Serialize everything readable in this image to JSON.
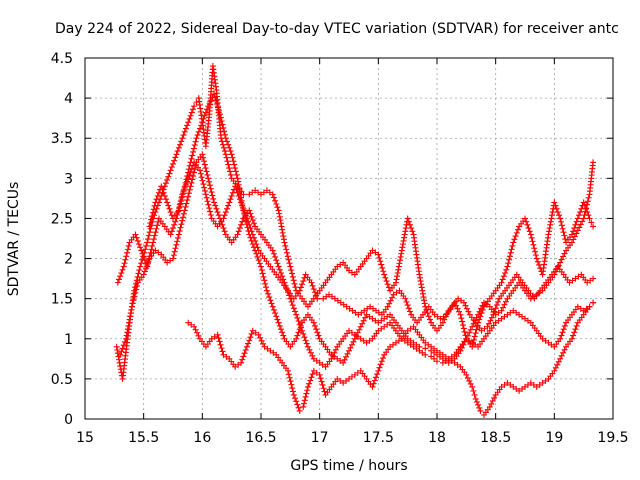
{
  "chart_data": {
    "type": "scatter",
    "title": "Day 224 of 2022, Sidereal Day-to-day VTEC variation (SDTVAR) for receiver antc",
    "xlabel": "GPS time / hours",
    "ylabel": "SDTVAR / TECUs",
    "xlim": [
      15,
      19.5
    ],
    "ylim": [
      0,
      4.5
    ],
    "x_ticks": [
      "15",
      "15.5",
      "16",
      "16.5",
      "17",
      "17.5",
      "18",
      "18.5",
      "19",
      "19.5"
    ],
    "y_ticks": [
      "0",
      "0.5",
      "1",
      "1.5",
      "2",
      "2.5",
      "3",
      "3.5",
      "4",
      "4.5"
    ],
    "grid": true,
    "marker": "+",
    "color": "#ff0000",
    "series": [
      {
        "name": "series-1",
        "x": [
          15.27,
          15.32,
          15.38,
          15.42,
          15.47,
          15.53,
          15.58,
          15.63,
          15.68,
          15.73,
          15.78,
          15.83,
          15.88,
          15.93,
          15.97,
          16.0,
          16.03,
          16.06,
          16.09,
          16.12,
          16.16,
          16.2,
          16.25,
          16.3,
          16.35,
          16.4,
          16.45,
          16.5,
          16.55,
          16.6,
          16.65,
          16.7,
          16.75,
          16.8,
          16.85,
          16.9,
          16.95,
          17.0,
          17.05,
          17.1,
          17.15,
          17.2,
          17.25,
          17.3,
          17.35,
          17.4,
          17.45,
          17.5,
          17.55,
          17.6,
          17.65,
          17.7,
          17.75,
          17.8,
          17.85,
          17.9,
          17.95,
          18.0,
          18.05,
          18.1,
          18.15,
          18.2,
          18.25,
          18.3,
          18.35,
          18.4,
          18.45,
          18.5,
          18.55,
          18.6,
          18.65,
          18.7,
          18.75,
          18.8,
          18.85,
          18.9,
          18.95,
          19.0,
          19.05,
          19.1,
          19.15,
          19.2,
          19.25,
          19.3,
          19.33
        ],
        "y": [
          0.9,
          0.5,
          1.2,
          1.6,
          1.9,
          2.2,
          2.5,
          2.7,
          2.9,
          3.1,
          3.3,
          3.5,
          3.7,
          3.9,
          4.0,
          3.7,
          3.4,
          3.8,
          4.4,
          4.1,
          3.5,
          3.3,
          3.0,
          2.9,
          2.8,
          2.8,
          2.85,
          2.8,
          2.85,
          2.8,
          2.6,
          2.2,
          1.9,
          1.6,
          1.5,
          1.4,
          1.5,
          1.6,
          1.7,
          1.8,
          1.9,
          1.95,
          1.85,
          1.8,
          1.9,
          2.0,
          2.1,
          2.05,
          1.8,
          1.6,
          1.7,
          2.1,
          2.5,
          2.3,
          1.8,
          1.4,
          1.2,
          1.1,
          1.2,
          1.35,
          1.45,
          1.3,
          1.0,
          0.9,
          1.2,
          1.4,
          1.5,
          1.6,
          1.7,
          1.9,
          2.2,
          2.4,
          2.5,
          2.3,
          2.0,
          1.8,
          2.3,
          2.7,
          2.5,
          2.2,
          2.3,
          2.5,
          2.7,
          2.5,
          2.4
        ]
      },
      {
        "name": "series-2",
        "x": [
          15.28,
          15.33,
          15.38,
          15.43,
          15.48,
          15.53,
          15.58,
          15.63,
          15.68,
          15.73,
          15.78,
          15.83,
          15.88,
          15.93,
          15.98,
          16.03,
          16.08,
          16.13,
          16.18,
          16.23,
          16.28,
          16.33,
          16.38,
          16.43,
          16.48,
          16.53,
          16.58,
          16.63,
          16.68,
          16.73,
          16.78,
          16.83,
          16.88,
          16.93,
          16.98,
          17.03,
          17.08,
          17.13,
          17.18,
          17.23,
          17.28,
          17.33,
          17.38,
          17.43,
          17.48,
          17.53,
          17.58,
          17.63,
          17.68,
          17.73,
          17.78,
          17.83,
          17.88,
          17.93,
          17.98,
          18.03,
          18.08,
          18.13,
          18.18,
          18.23,
          18.28,
          18.33,
          18.38,
          18.43,
          18.48,
          18.53,
          18.58,
          18.63,
          18.68,
          18.73,
          18.78,
          18.83,
          18.88,
          18.93,
          18.98,
          19.03,
          19.08,
          19.13,
          19.18,
          19.23,
          19.28,
          19.33
        ],
        "y": [
          1.7,
          1.9,
          2.2,
          2.3,
          2.1,
          1.9,
          2.2,
          2.5,
          2.4,
          2.3,
          2.5,
          2.8,
          3.0,
          3.2,
          3.1,
          2.8,
          2.5,
          2.4,
          2.5,
          2.7,
          2.9,
          2.7,
          2.5,
          2.3,
          2.1,
          2.0,
          1.9,
          1.8,
          1.7,
          1.6,
          1.5,
          1.6,
          1.8,
          1.7,
          1.5,
          1.5,
          1.55,
          1.5,
          1.45,
          1.4,
          1.35,
          1.3,
          1.35,
          1.4,
          1.35,
          1.3,
          1.4,
          1.55,
          1.6,
          1.5,
          1.3,
          1.2,
          1.3,
          1.4,
          1.3,
          1.25,
          1.3,
          1.4,
          1.5,
          1.45,
          1.3,
          1.2,
          1.1,
          1.15,
          1.3,
          1.5,
          1.6,
          1.7,
          1.8,
          1.7,
          1.6,
          1.5,
          1.6,
          1.7,
          1.8,
          1.9,
          1.8,
          1.7,
          1.75,
          1.8,
          1.7,
          1.75
        ]
      },
      {
        "name": "series-3",
        "x": [
          15.3,
          15.35,
          15.4,
          15.45,
          15.5,
          15.55,
          15.6,
          15.65,
          15.7,
          15.75,
          15.8,
          15.85,
          15.9,
          15.95,
          16.0,
          16.05,
          16.1,
          16.15,
          16.2,
          16.25,
          16.3,
          16.35,
          16.4,
          16.45,
          16.5,
          16.55,
          16.6,
          16.65,
          16.7,
          16.75,
          16.8,
          16.85,
          16.9,
          16.95,
          17.0,
          17.05,
          17.1,
          17.15,
          17.2,
          17.25,
          17.3,
          17.35,
          17.4,
          17.45,
          17.5,
          17.55,
          17.6,
          17.65,
          17.7,
          17.75,
          17.8,
          17.85,
          17.9,
          17.95,
          18.0,
          18.05,
          18.1,
          18.15,
          18.2,
          18.25,
          18.3,
          18.35,
          18.4,
          18.45,
          18.5,
          18.55,
          18.6,
          18.65,
          18.7,
          18.75,
          18.8,
          18.85,
          18.9,
          18.95,
          19.0,
          19.05,
          19.1,
          19.15,
          19.2,
          19.25,
          19.3,
          19.33
        ],
        "y": [
          0.8,
          1.0,
          1.4,
          1.7,
          1.8,
          2.0,
          2.1,
          2.05,
          1.95,
          2.0,
          2.3,
          2.6,
          2.9,
          3.2,
          3.3,
          3.0,
          2.7,
          2.5,
          2.3,
          2.2,
          2.3,
          2.5,
          2.6,
          2.4,
          2.3,
          2.2,
          2.1,
          1.9,
          1.7,
          1.5,
          1.3,
          1.1,
          0.9,
          0.75,
          0.7,
          0.65,
          0.75,
          0.9,
          1.0,
          1.1,
          1.05,
          1.0,
          0.95,
          1.0,
          1.1,
          1.15,
          1.2,
          1.1,
          1.0,
          0.95,
          0.9,
          0.85,
          0.8,
          0.78,
          0.72,
          0.7,
          0.75,
          0.8,
          0.9,
          1.0,
          0.95,
          0.9,
          1.0,
          1.1,
          1.2,
          1.25,
          1.3,
          1.35,
          1.3,
          1.25,
          1.2,
          1.1,
          1.0,
          0.95,
          0.9,
          1.0,
          1.2,
          1.3,
          1.4,
          1.35,
          1.4,
          1.45
        ]
      },
      {
        "name": "series-4",
        "x": [
          15.88,
          15.93,
          15.98,
          16.03,
          16.08,
          16.13,
          16.18,
          16.23,
          16.28,
          16.33,
          16.38,
          16.43,
          16.48,
          16.53,
          16.58,
          16.63,
          16.68,
          16.73,
          16.78,
          16.83,
          16.86,
          16.9,
          16.95,
          17.0,
          17.05,
          17.1,
          17.15,
          17.2,
          17.25,
          17.3,
          17.35,
          17.4,
          17.45,
          17.5,
          17.55,
          17.6,
          17.65,
          17.7,
          17.75,
          17.8,
          17.85,
          17.9,
          17.95,
          18.0,
          18.05,
          18.1,
          18.15,
          18.2,
          18.25,
          18.3,
          18.33,
          18.37,
          18.4,
          18.45,
          18.5,
          18.55,
          18.6,
          18.65,
          18.7,
          18.75,
          18.8,
          18.85,
          18.9,
          18.95,
          19.0,
          19.05,
          19.1,
          19.15,
          19.2,
          19.25,
          19.3,
          19.33
        ],
        "y": [
          1.2,
          1.15,
          1.0,
          0.9,
          1.0,
          1.05,
          0.8,
          0.75,
          0.65,
          0.7,
          0.9,
          1.1,
          1.05,
          0.9,
          0.85,
          0.8,
          0.7,
          0.6,
          0.3,
          0.1,
          0.15,
          0.4,
          0.6,
          0.55,
          0.3,
          0.4,
          0.5,
          0.45,
          0.5,
          0.55,
          0.6,
          0.5,
          0.4,
          0.6,
          0.8,
          0.9,
          0.95,
          1.0,
          1.1,
          1.15,
          1.05,
          0.95,
          0.9,
          0.85,
          0.8,
          0.75,
          0.7,
          0.65,
          0.55,
          0.4,
          0.25,
          0.1,
          0.05,
          0.15,
          0.3,
          0.4,
          0.45,
          0.4,
          0.35,
          0.4,
          0.45,
          0.4,
          0.45,
          0.5,
          0.6,
          0.75,
          0.9,
          1.0,
          1.2,
          1.3,
          1.4,
          1.45
        ]
      },
      {
        "name": "series-5",
        "x": [
          15.55,
          15.6,
          15.65,
          15.7,
          15.75,
          15.8,
          15.85,
          15.9,
          15.95,
          16.0,
          16.05,
          16.1,
          16.15,
          16.2,
          16.25,
          16.3,
          16.35,
          16.4,
          16.45,
          16.5,
          16.55,
          16.6,
          16.65,
          16.7,
          16.75,
          16.8,
          16.85,
          16.9,
          16.95,
          17.0,
          17.05,
          17.1,
          17.15,
          17.2,
          17.25,
          17.3,
          17.35,
          17.4,
          17.45,
          17.5,
          17.55,
          17.6,
          17.65,
          17.7,
          17.75,
          17.8,
          17.85,
          17.9,
          17.95,
          18.0,
          18.05,
          18.1,
          18.15,
          18.2,
          18.25,
          18.3,
          18.35,
          18.4,
          18.45,
          18.5,
          18.55,
          18.6,
          18.65,
          18.7,
          18.75,
          18.8,
          18.85,
          18.9,
          18.95,
          19.0,
          19.05,
          19.1,
          19.15,
          19.2,
          19.25,
          19.3,
          19.33
        ],
        "y": [
          2.4,
          2.7,
          2.9,
          2.7,
          2.5,
          2.6,
          2.9,
          3.2,
          3.5,
          3.7,
          3.9,
          4.05,
          3.8,
          3.5,
          3.3,
          3.0,
          2.6,
          2.3,
          2.1,
          1.9,
          1.6,
          1.4,
          1.2,
          1.0,
          0.9,
          1.0,
          1.2,
          1.3,
          1.2,
          1.0,
          0.9,
          0.8,
          0.75,
          0.7,
          0.85,
          1.0,
          1.15,
          1.3,
          1.25,
          1.2,
          1.25,
          1.3,
          1.2,
          1.1,
          1.0,
          0.95,
          0.9,
          0.88,
          0.85,
          0.8,
          0.75,
          0.7,
          0.75,
          0.85,
          1.0,
          1.15,
          1.3,
          1.45,
          1.4,
          1.3,
          1.35,
          1.5,
          1.6,
          1.7,
          1.6,
          1.5,
          1.55,
          1.6,
          1.7,
          1.8,
          1.95,
          2.1,
          2.2,
          2.35,
          2.5,
          2.8,
          3.2
        ]
      }
    ]
  }
}
